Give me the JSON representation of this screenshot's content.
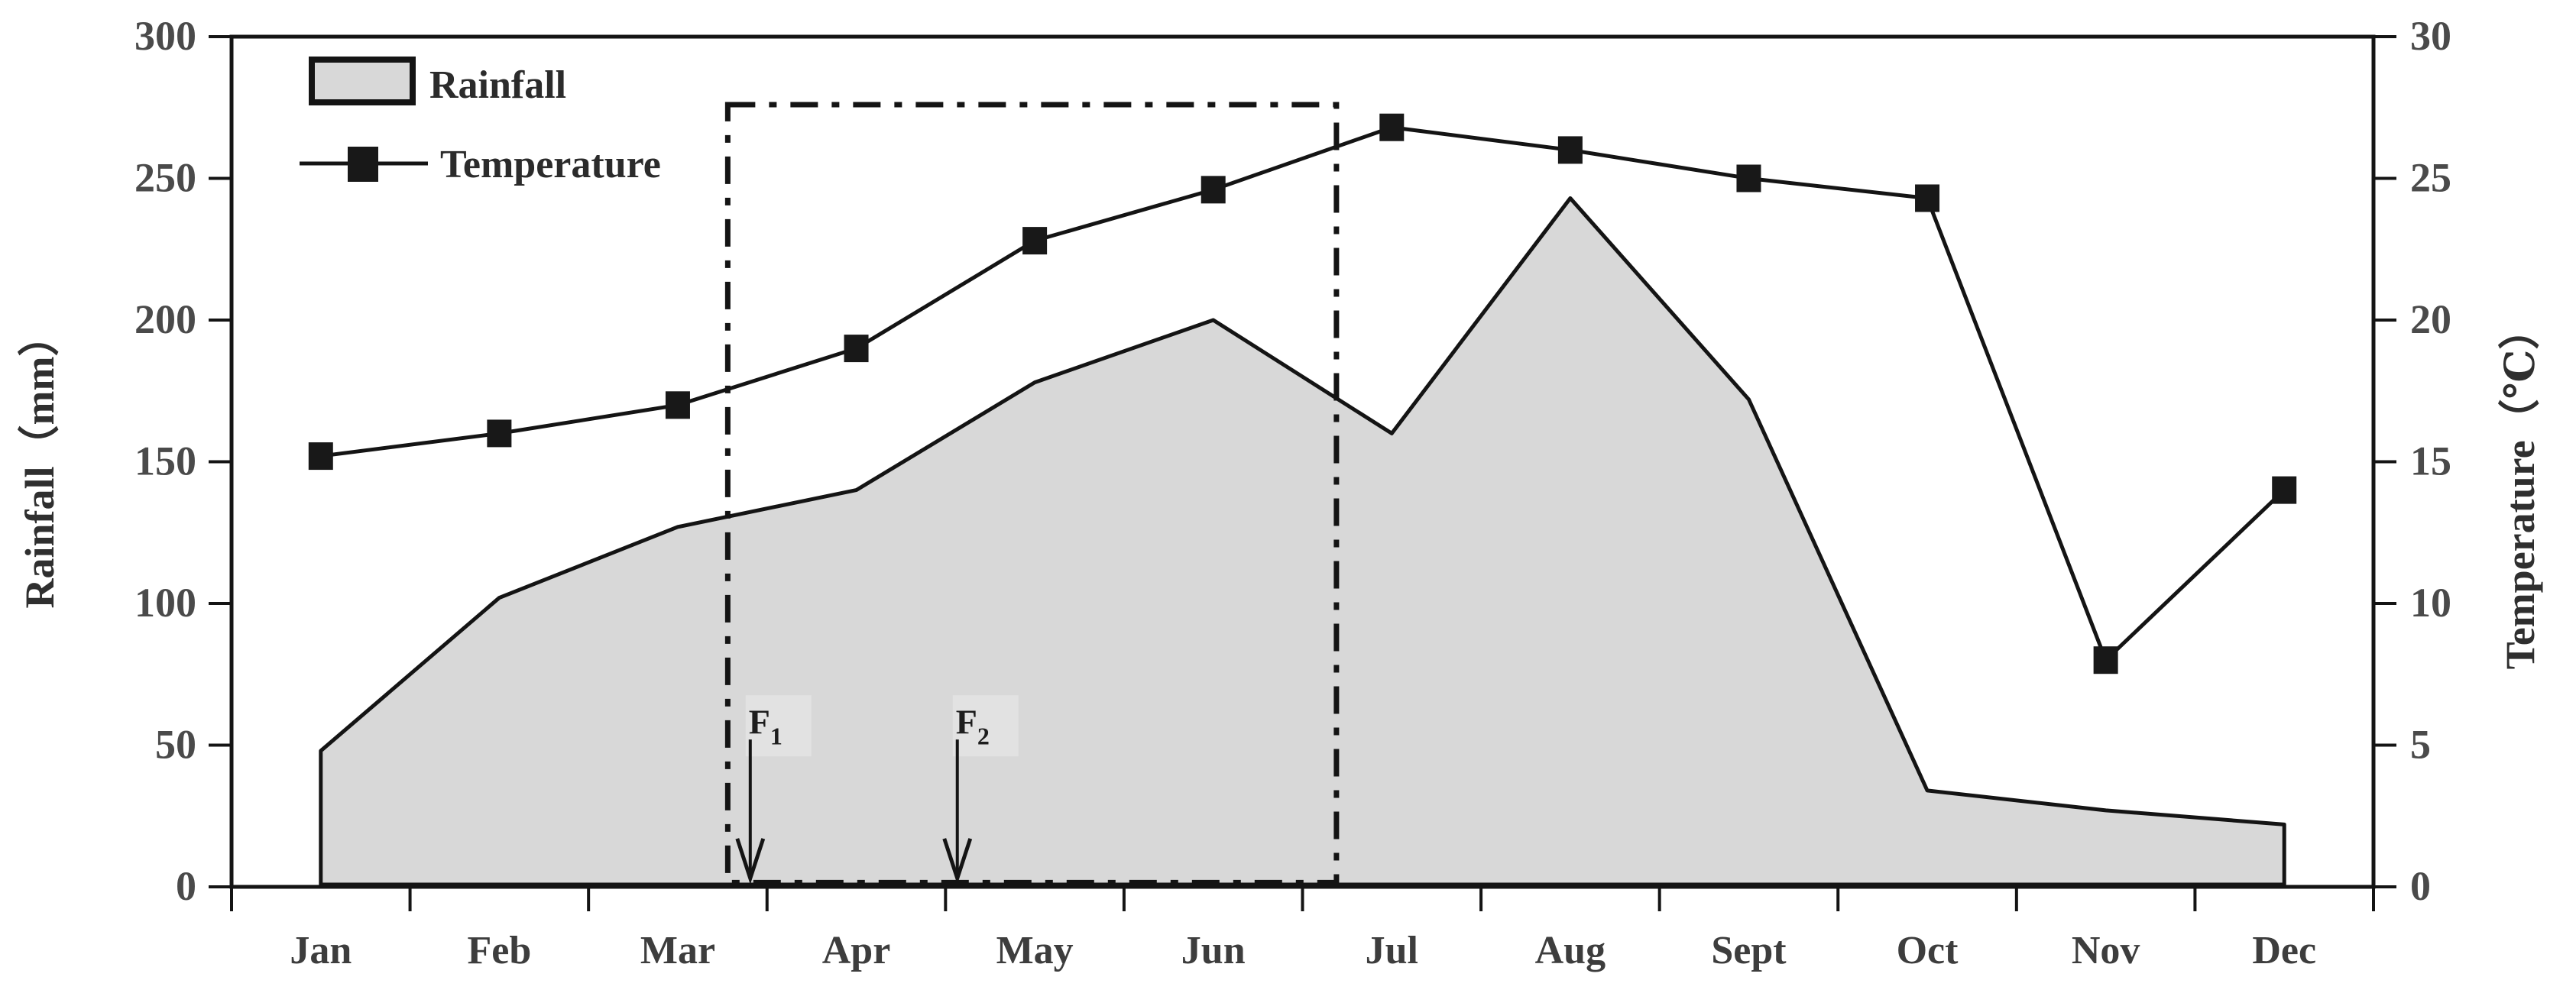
{
  "chart_data": {
    "type": "combo",
    "title": "",
    "months": [
      "Jan",
      "Feb",
      "Mar",
      "Apr",
      "May",
      "Jun",
      "Jul",
      "Aug",
      "Sept",
      "Oct",
      "Nov",
      "Dec"
    ],
    "series": [
      {
        "name": "Rainfall",
        "type": "area",
        "axis": "left",
        "unit": "mm",
        "values": [
          48,
          102,
          127,
          140,
          178,
          200,
          160,
          243,
          172,
          34,
          27,
          22
        ]
      },
      {
        "name": "Temperature",
        "type": "line",
        "axis": "right",
        "unit": "°C",
        "values": [
          15.2,
          16.0,
          17.0,
          19.0,
          22.8,
          24.6,
          26.8,
          26.0,
          25.0,
          24.3,
          8.0,
          14.0
        ]
      }
    ],
    "left_axis": {
      "label": "Rainfall（mm）",
      "min": 0,
      "max": 300,
      "step": 50,
      "ticks": [
        "0",
        "50",
        "100",
        "150",
        "200",
        "250",
        "300"
      ]
    },
    "right_axis": {
      "label": "Temperature（℃）",
      "min": 0,
      "max": 30,
      "step": 5,
      "ticks": [
        "0",
        "5",
        "10",
        "15",
        "20",
        "25",
        "30"
      ]
    },
    "legend": {
      "position": "top-left",
      "items": [
        {
          "label": "Rainfall",
          "swatch": "area-swatch"
        },
        {
          "label": "Temperature",
          "swatch": "line-marker-swatch"
        }
      ]
    },
    "annotations": {
      "highlight_box": {
        "style": "dash-dot",
        "from_u": 2.78,
        "to_u": 6.19,
        "top_value_mm": 276,
        "bottom_value_mm": 1.5
      },
      "arrows": [
        {
          "label": "F",
          "sub": "1",
          "u": 2.906,
          "from_mm": 52,
          "to_mm": 3
        },
        {
          "label": "F",
          "sub": "2",
          "u": 4.066,
          "from_mm": 52,
          "to_mm": 3
        }
      ]
    },
    "layout_hints": {
      "grid": false,
      "legend_position": "top-left",
      "x_ticks_between_months": true
    },
    "colors": {
      "area_fill": "#d8d8d8",
      "line_stroke": "#141414",
      "frame_stroke": "#141414",
      "tick_text": "#4a4a4a",
      "month_text": "#3d3d3d",
      "axis_title_text": "#2f2f2f",
      "annotation_bg": "#e2e2e2"
    }
  }
}
